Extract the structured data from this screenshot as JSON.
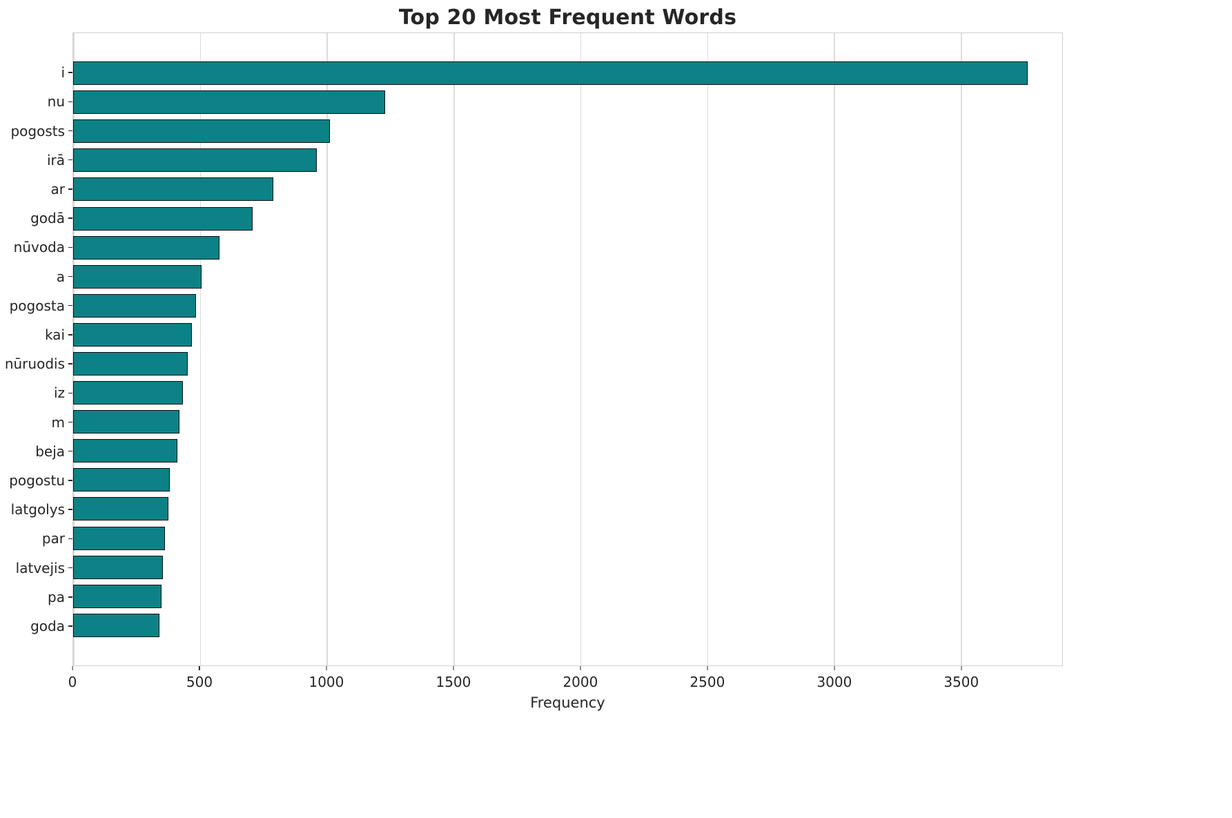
{
  "chart_data": {
    "type": "bar",
    "orientation": "horizontal",
    "title": "Top 20 Most Frequent Words",
    "xlabel": "Frequency",
    "ylabel": "",
    "categories": [
      "i",
      "nu",
      "pogosts",
      "irā",
      "ar",
      "godā",
      "nūvoda",
      "a",
      "pogosta",
      "kai",
      "nūruodis",
      "iz",
      "m",
      "beja",
      "pogostu",
      "latgolys",
      "par",
      "latvejis",
      "pa",
      "goda"
    ],
    "values": [
      3765,
      1230,
      1013,
      962,
      790,
      708,
      578,
      505,
      485,
      469,
      452,
      433,
      420,
      411,
      381,
      376,
      362,
      354,
      349,
      341
    ],
    "xlim": [
      0,
      3900
    ],
    "xticks": [
      0,
      500,
      1000,
      1500,
      2000,
      2500,
      3000,
      3500
    ],
    "grid": "vertical",
    "legend": "none",
    "bar_color": "#0c8286",
    "bar_edge_color": "#111111",
    "grid_color": "#dcdcdc",
    "background": "#ffffff"
  }
}
